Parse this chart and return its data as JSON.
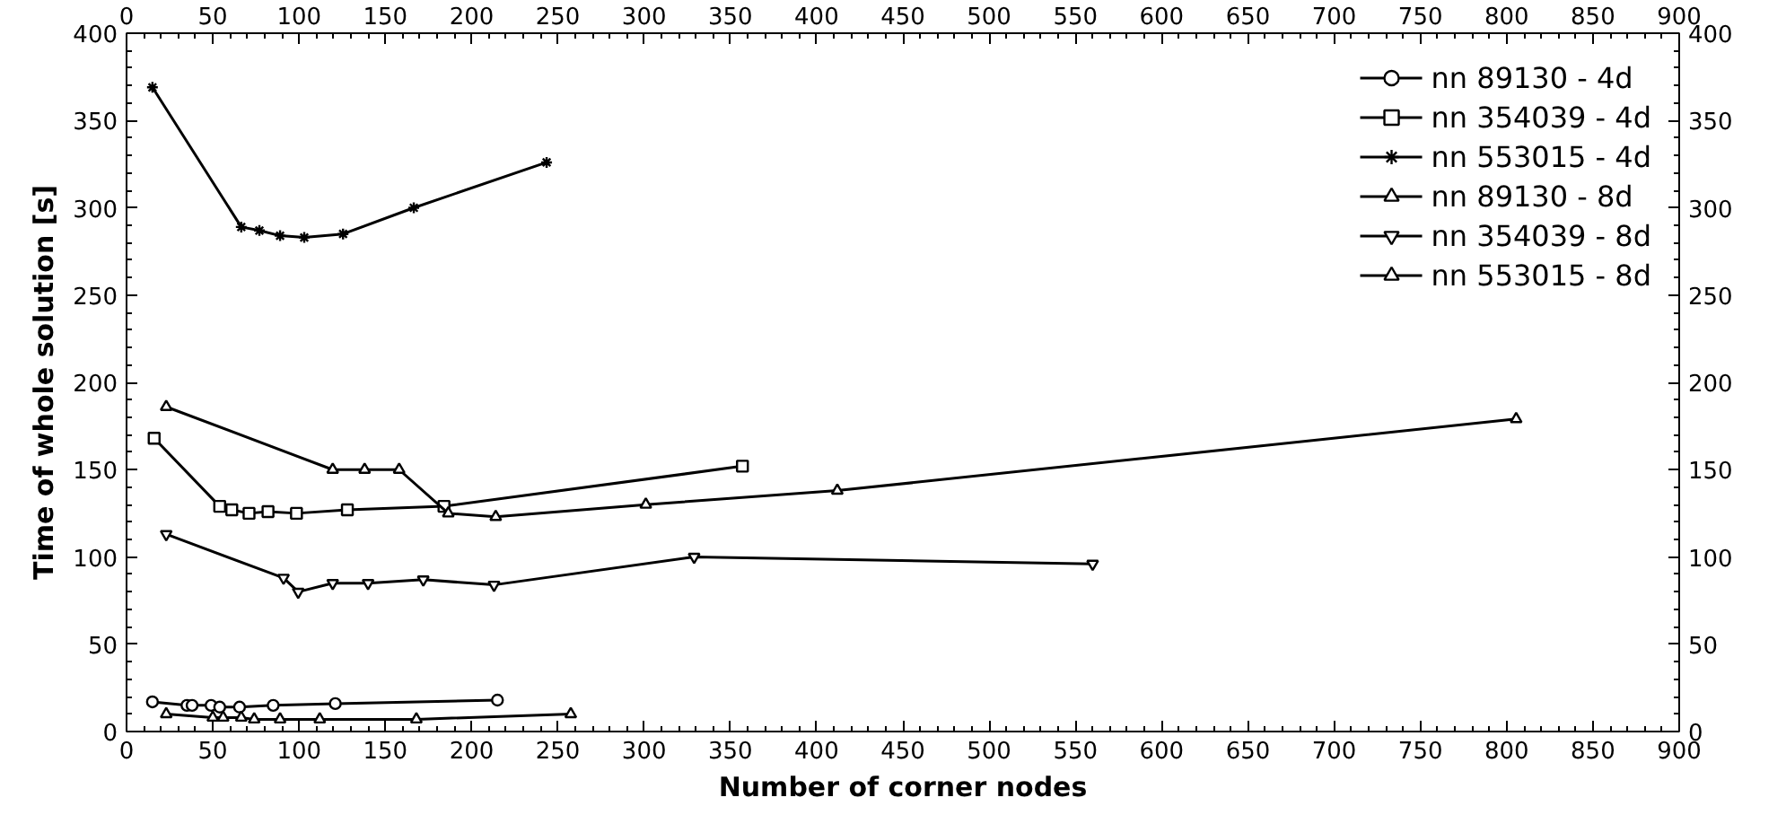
{
  "chart_data": {
    "type": "line",
    "xlabel": "Number of corner nodes",
    "ylabel": "Time of whole solution [s]",
    "xlim": [
      0,
      900
    ],
    "xticks": [
      0,
      50,
      100,
      150,
      200,
      250,
      300,
      350,
      400,
      450,
      500,
      550,
      600,
      650,
      700,
      750,
      800,
      850,
      900
    ],
    "x2lim": [
      0,
      900
    ],
    "x2ticks": [
      0,
      50,
      100,
      150,
      200,
      250,
      300,
      350,
      400,
      450,
      500,
      550,
      600,
      650,
      700,
      750,
      800,
      850,
      900
    ],
    "ylim": [
      0,
      400
    ],
    "yticks": [
      0,
      50,
      100,
      150,
      200,
      250,
      300,
      350,
      400
    ],
    "y2lim": [
      0,
      400
    ],
    "y2ticks": [
      0,
      50,
      100,
      150,
      200,
      250,
      300,
      350,
      400
    ],
    "grid": false,
    "legend": "top right",
    "line_style": "solid",
    "series": [
      {
        "name": "nn 89130 - 4d",
        "color": "#000000",
        "marker": "circle",
        "x": [
          15,
          35,
          38,
          49,
          54,
          65.5,
          85,
          121,
          215
        ],
        "values": [
          17,
          15,
          15,
          15,
          14,
          14,
          15,
          16,
          18
        ]
      },
      {
        "name": "nn 354039 - 4d",
        "color": "#000000",
        "marker": "square",
        "x": [
          16,
          54,
          61,
          71,
          82,
          98.5,
          128,
          184,
          357
        ],
        "values": [
          168,
          129,
          127,
          125,
          126,
          125,
          127,
          129,
          152
        ]
      },
      {
        "name": "nn 553015 - 4d",
        "color": "#000000",
        "marker": "cross",
        "x": [
          15,
          66.5,
          77,
          89,
          103,
          125.5,
          166.5,
          243.5
        ],
        "values": [
          369,
          289,
          287,
          284,
          283,
          285,
          300,
          326
        ]
      },
      {
        "name": "nn 89130 - 8d",
        "color": "#000000",
        "marker": "triangle",
        "x": [
          23,
          50,
          56,
          66.5,
          74,
          89,
          112,
          168,
          257.5
        ],
        "values": [
          10,
          8,
          8,
          8,
          7,
          7,
          7,
          7,
          10
        ]
      },
      {
        "name": "nn 354039 - 8d",
        "color": "#000000",
        "marker": "triangle_down",
        "x": [
          23,
          91,
          99.5,
          119.5,
          140,
          172,
          213,
          329,
          560
        ],
        "values": [
          113,
          88,
          80,
          85,
          85,
          87,
          84,
          100,
          96
        ]
      },
      {
        "name": "nn 553015 - 8d",
        "color": "#000000",
        "marker": "triangle",
        "x": [
          23,
          119.5,
          138,
          158,
          186.5,
          214,
          301,
          412,
          805.5
        ],
        "values": [
          186,
          150,
          150,
          150,
          125,
          123,
          130,
          138,
          179
        ]
      }
    ]
  }
}
